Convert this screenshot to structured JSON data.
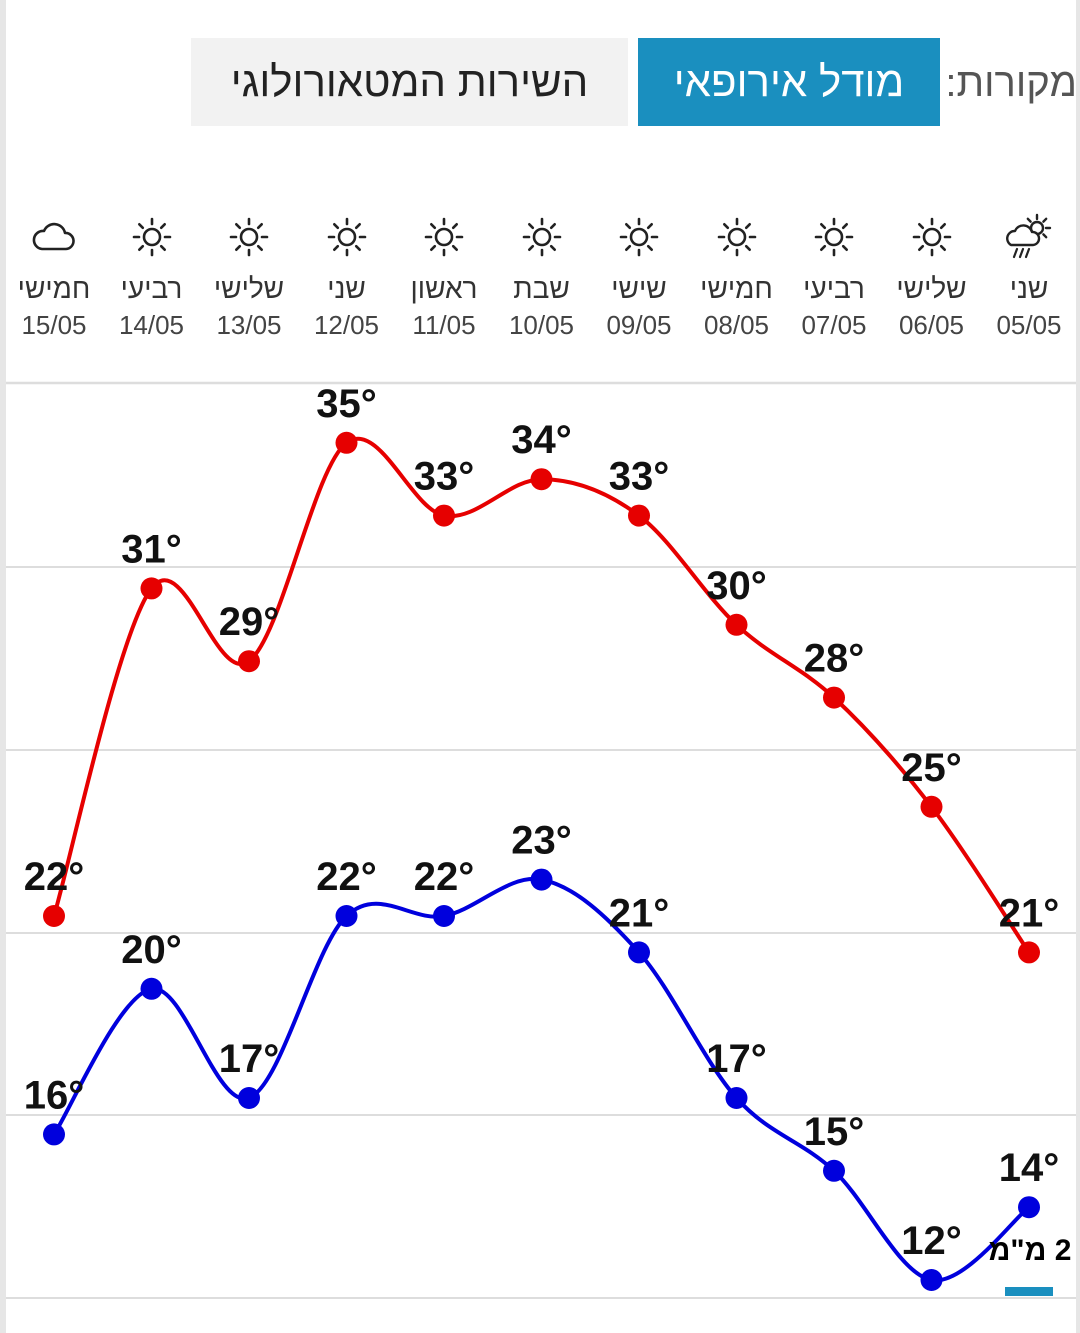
{
  "sources": {
    "label": "מקורות:",
    "options": [
      "מודל אירופאי",
      "השירות המטאורולוגי"
    ],
    "active": "מודל אירופאי"
  },
  "days": [
    {
      "name": "שני",
      "date": "05/05",
      "icon": "cloud-sun-rain-icon"
    },
    {
      "name": "שלישי",
      "date": "06/05",
      "icon": "sun-icon"
    },
    {
      "name": "רביעי",
      "date": "07/05",
      "icon": "sun-icon"
    },
    {
      "name": "חמישי",
      "date": "08/05",
      "icon": "sun-icon"
    },
    {
      "name": "שישי",
      "date": "09/05",
      "icon": "sun-icon"
    },
    {
      "name": "שבת",
      "date": "10/05",
      "icon": "sun-icon"
    },
    {
      "name": "ראשון",
      "date": "11/05",
      "icon": "sun-icon"
    },
    {
      "name": "שני",
      "date": "12/05",
      "icon": "sun-icon"
    },
    {
      "name": "שלישי",
      "date": "13/05",
      "icon": "sun-icon"
    },
    {
      "name": "רביעי",
      "date": "14/05",
      "icon": "sun-icon"
    },
    {
      "name": "חמישי",
      "date": "15/05",
      "icon": "cloud-icon"
    }
  ],
  "chart_data": {
    "type": "line",
    "x": [
      "05/05",
      "06/05",
      "07/05",
      "08/05",
      "09/05",
      "10/05",
      "11/05",
      "12/05",
      "13/05",
      "14/05",
      "15/05"
    ],
    "x_direction": "right-to-left",
    "series": [
      {
        "values": [
          21,
          25,
          28,
          30,
          33,
          34,
          33,
          35,
          29,
          31,
          22
        ],
        "color": "#e60000"
      },
      {
        "values": [
          14,
          12,
          15,
          17,
          21,
          23,
          22,
          22,
          17,
          20,
          16
        ],
        "color": "#0000dd"
      }
    ],
    "unit_suffix": "°",
    "ylim": [
      8,
      37
    ],
    "grid": true
  },
  "precip": {
    "label": "2 מ\"מ",
    "color": "#1a8fbf"
  }
}
